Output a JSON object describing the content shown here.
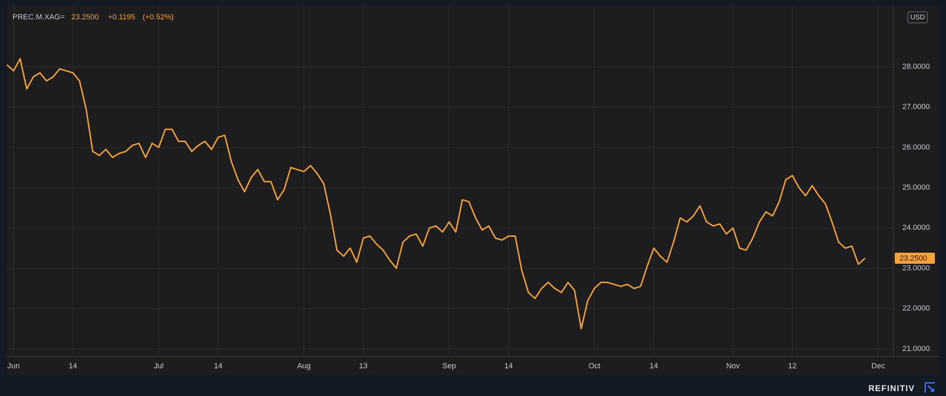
{
  "chart_data": {
    "type": "line",
    "header": {
      "symbol": "PREC.M.XAG=",
      "last": "23.2500",
      "change": "+0.1195",
      "change_pct": "(+0.52%)"
    },
    "currency": "USD",
    "brand": "REFINITIV",
    "color": "#f7a23b",
    "values": [
      28.05,
      27.9,
      28.2,
      27.45,
      27.75,
      27.85,
      27.65,
      27.75,
      27.95,
      27.9,
      27.85,
      27.65,
      26.95,
      25.9,
      25.8,
      25.95,
      25.75,
      25.85,
      25.9,
      26.05,
      26.1,
      25.75,
      26.1,
      26.0,
      26.45,
      26.45,
      26.15,
      26.15,
      25.9,
      26.05,
      26.15,
      25.95,
      26.25,
      26.3,
      25.65,
      25.2,
      24.9,
      25.25,
      25.45,
      25.15,
      25.15,
      24.7,
      24.95,
      25.5,
      25.45,
      25.4,
      25.55,
      25.35,
      25.1,
      24.35,
      23.45,
      23.3,
      23.5,
      23.15,
      23.75,
      23.8,
      23.6,
      23.45,
      23.2,
      23.0,
      23.65,
      23.8,
      23.85,
      23.55,
      24.0,
      24.05,
      23.9,
      24.15,
      23.9,
      24.7,
      24.65,
      24.25,
      23.95,
      24.05,
      23.75,
      23.7,
      23.8,
      23.8,
      22.95,
      22.4,
      22.25,
      22.5,
      22.65,
      22.5,
      22.4,
      22.65,
      22.45,
      21.5,
      22.2,
      22.5,
      22.65,
      22.65,
      22.6,
      22.55,
      22.6,
      22.5,
      22.55,
      23.05,
      23.5,
      23.3,
      23.15,
      23.65,
      24.25,
      24.15,
      24.3,
      24.55,
      24.15,
      24.05,
      24.1,
      23.85,
      24.0,
      23.5,
      23.45,
      23.75,
      24.15,
      24.4,
      24.3,
      24.65,
      25.2,
      25.3,
      25.0,
      24.8,
      25.05,
      24.8,
      24.6,
      24.15,
      23.65,
      23.5,
      23.55,
      23.1,
      23.25
    ],
    "xlim": [
      0,
      134.3
    ],
    "xticks": [
      {
        "value": 1,
        "label": "Jun"
      },
      {
        "value": 10,
        "label": "14"
      },
      {
        "value": 23,
        "label": "Jul"
      },
      {
        "value": 32,
        "label": "14"
      },
      {
        "value": 45,
        "label": "Aug"
      },
      {
        "value": 54,
        "label": "13"
      },
      {
        "value": 67,
        "label": "Sep"
      },
      {
        "value": 76,
        "label": "14"
      },
      {
        "value": 89,
        "label": "Oct"
      },
      {
        "value": 98,
        "label": "14"
      },
      {
        "value": 110,
        "label": "Nov"
      },
      {
        "value": 119,
        "label": "12"
      },
      {
        "value": 132,
        "label": "Dec"
      }
    ],
    "ylim": [
      20.81,
      29.52
    ],
    "yticks": [
      {
        "value": 21,
        "label": "21.0000"
      },
      {
        "value": 22,
        "label": "22.0000"
      },
      {
        "value": 23,
        "label": "23.0000"
      },
      {
        "value": 24,
        "label": "24.0000"
      },
      {
        "value": 25,
        "label": "25.0000"
      },
      {
        "value": 26,
        "label": "26.0000"
      },
      {
        "value": 27,
        "label": "27.0000"
      },
      {
        "value": 28,
        "label": "28.0000"
      }
    ],
    "grid": true
  }
}
